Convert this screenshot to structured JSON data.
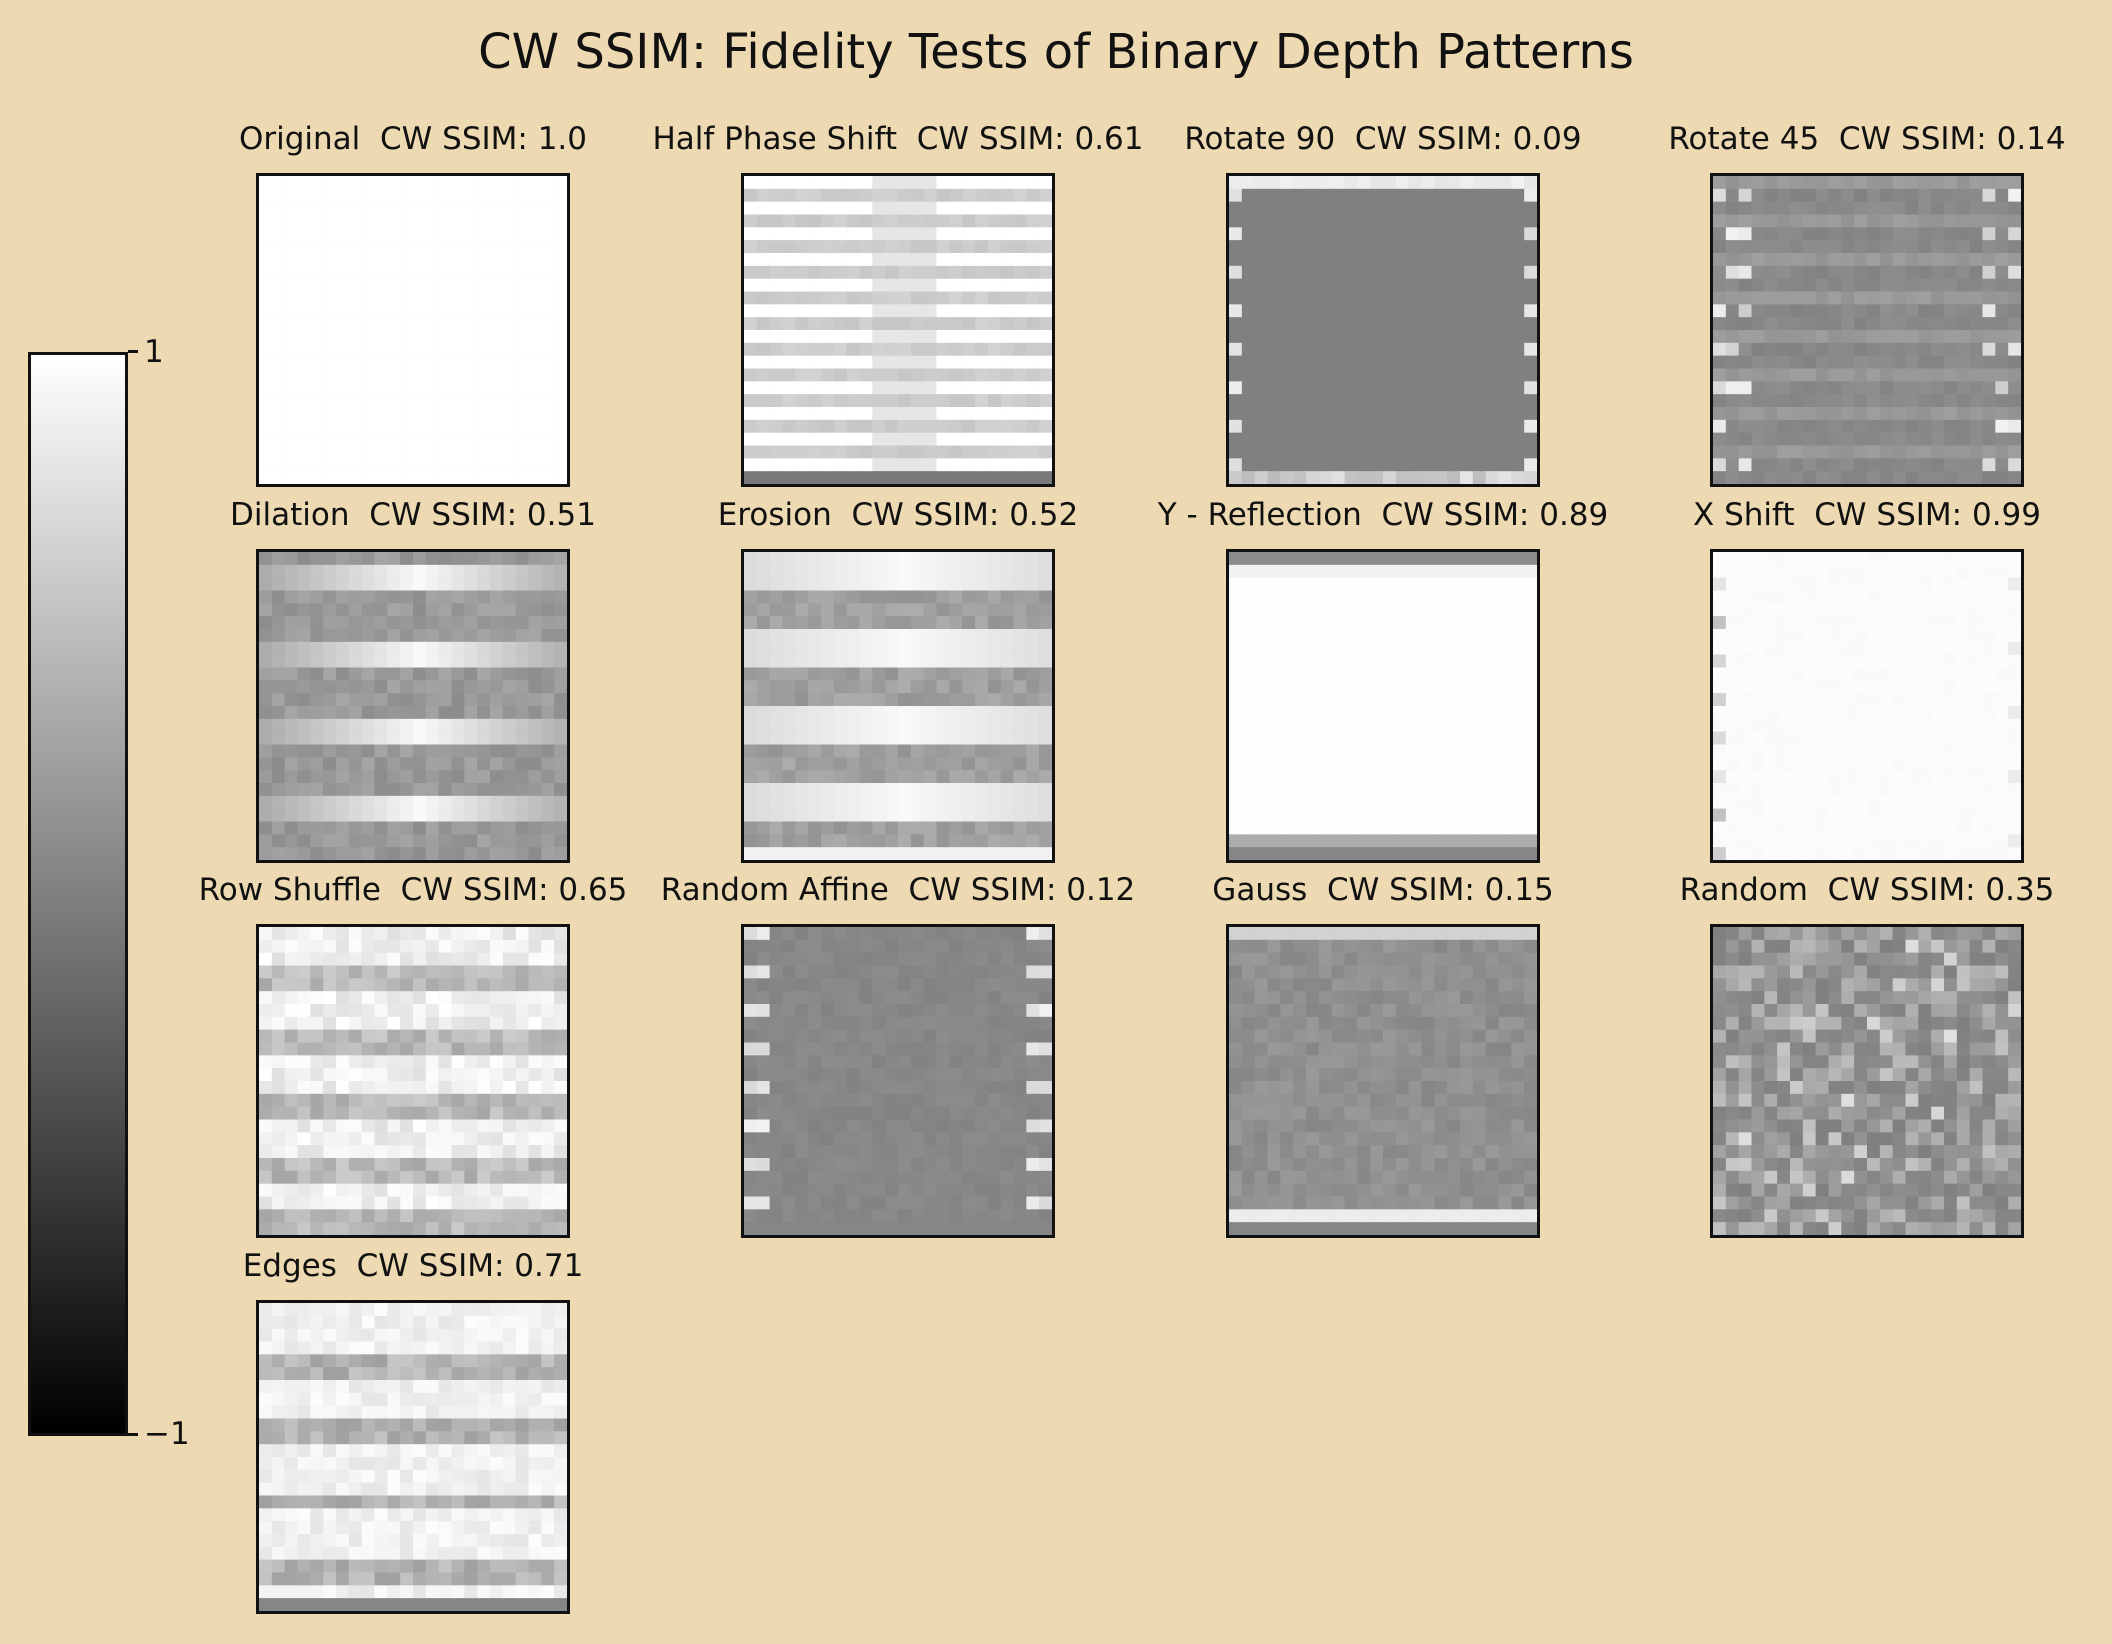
{
  "title": "CW SSIM: Fidelity Tests of Binary Depth Patterns",
  "colors": {
    "background": "#EEDAB2",
    "colormap_low": "#000000",
    "colormap_high": "#ffffff",
    "frame": "#111111"
  },
  "colorbar": {
    "max_label": "1",
    "min_label": "−1",
    "range": [
      -1,
      1
    ],
    "cmap": "gray"
  },
  "chart_data": {
    "type": "heatmap",
    "title": "CW SSIM: Fidelity Tests of Binary Depth Patterns",
    "colorbar_range": [
      -1,
      1
    ],
    "panels": [
      {
        "name": "Original",
        "metric_label": "CW SSIM: 1.0",
        "score": 1.0
      },
      {
        "name": "Half Phase Shift",
        "metric_label": "CW SSIM: 0.61",
        "score": 0.61
      },
      {
        "name": "Rotate 90",
        "metric_label": "CW SSIM: 0.09",
        "score": 0.09
      },
      {
        "name": "Rotate 45",
        "metric_label": "CW SSIM: 0.14",
        "score": 0.14
      },
      {
        "name": "Dilation",
        "metric_label": "CW SSIM: 0.51",
        "score": 0.51
      },
      {
        "name": "Erosion",
        "metric_label": "CW SSIM: 0.52",
        "score": 0.52
      },
      {
        "name": "Y - Reflection",
        "metric_label": "CW SSIM: 0.89",
        "score": 0.89
      },
      {
        "name": "X Shift",
        "metric_label": "CW SSIM: 0.99",
        "score": 0.99
      },
      {
        "name": "Row Shuffle",
        "metric_label": "CW SSIM: 0.65",
        "score": 0.65
      },
      {
        "name": "Random Affine",
        "metric_label": "CW SSIM: 0.12",
        "score": 0.12
      },
      {
        "name": "Gauss",
        "metric_label": "CW SSIM: 0.15",
        "score": 0.15
      },
      {
        "name": "Random",
        "metric_label": "CW SSIM: 0.35",
        "score": 0.35
      },
      {
        "name": "Edges",
        "metric_label": "CW SSIM: 0.71",
        "score": 0.71
      }
    ]
  }
}
